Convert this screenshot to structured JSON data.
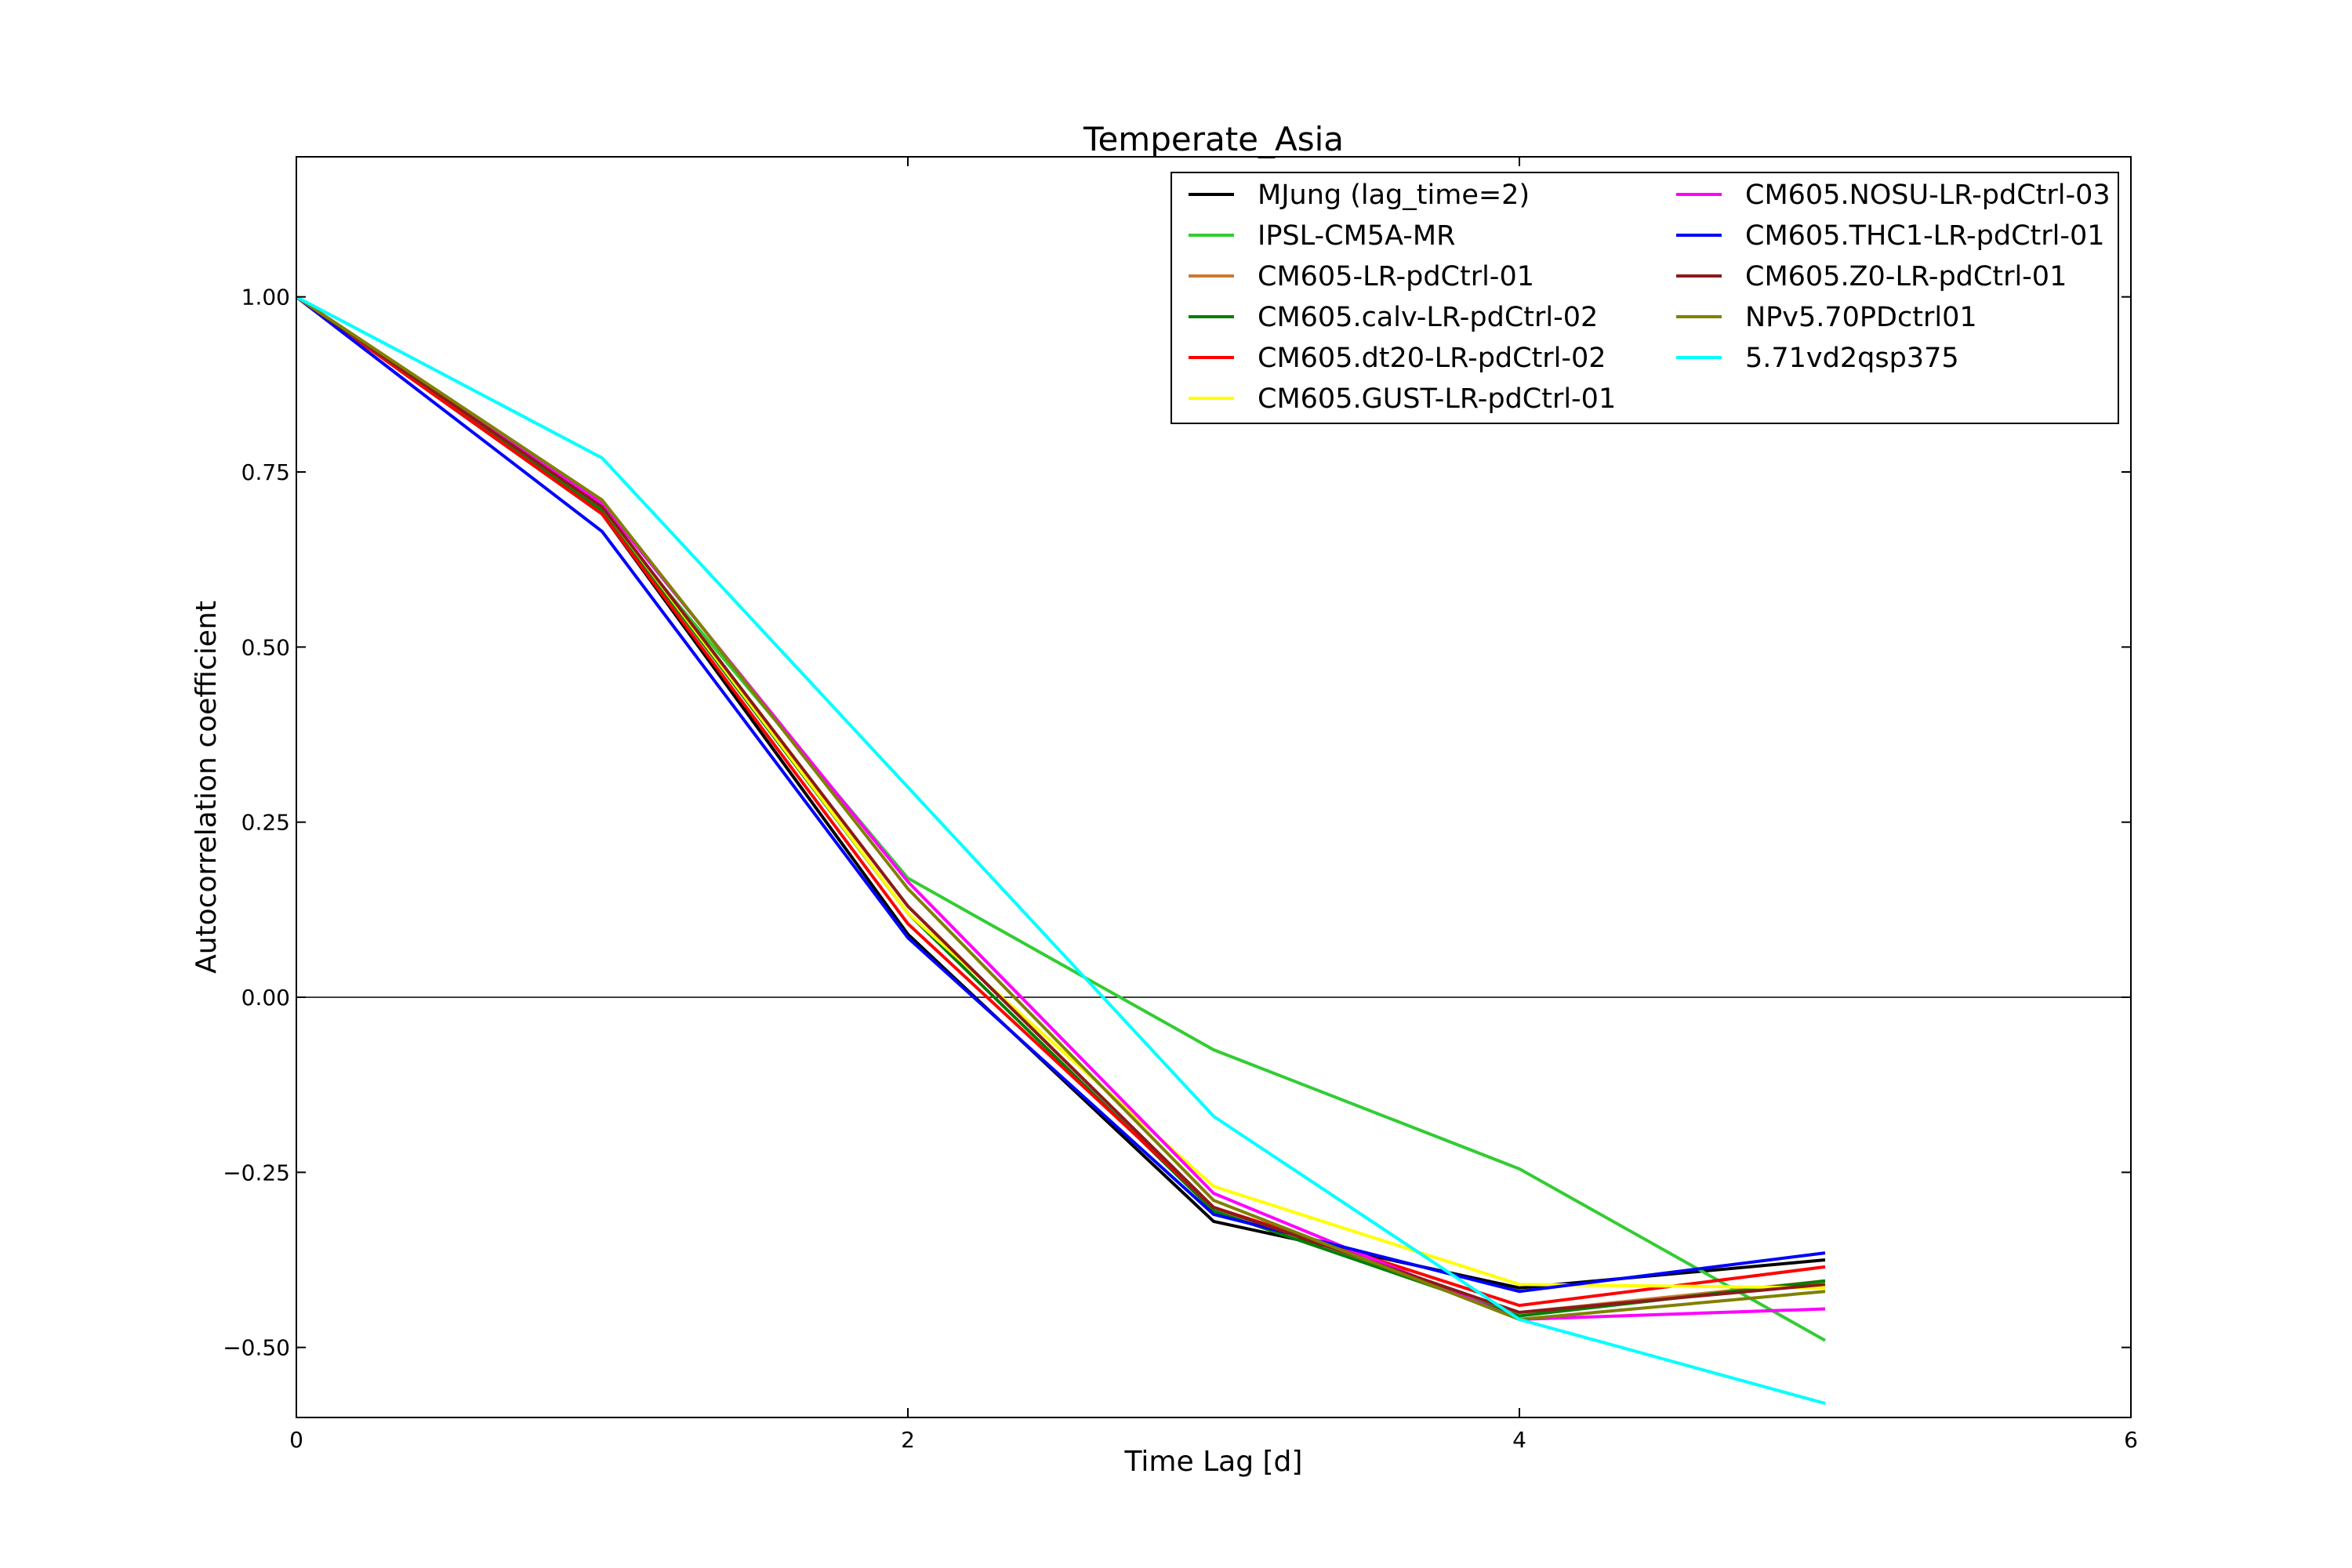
{
  "chart_data": {
    "type": "line",
    "title": "Temperate_Asia",
    "xlabel": "Time Lag [d]",
    "ylabel": "Autocorrelation coefficient",
    "xlim": [
      0,
      6
    ],
    "ylim": [
      -0.6,
      1.2
    ],
    "xticks": [
      0,
      2,
      4,
      6
    ],
    "xtick_labels": [
      "0",
      "2",
      "4",
      "6"
    ],
    "yticks": [
      -0.5,
      -0.25,
      0,
      0.25,
      0.5,
      0.75,
      1.0
    ],
    "ytick_labels": [
      "−0.50",
      "−0.25",
      "0.00",
      "0.25",
      "0.50",
      "0.75",
      "1.00"
    ],
    "zero_line": true,
    "grid": false,
    "legend_position": "top-right",
    "x": [
      0,
      1,
      2,
      3,
      4,
      5
    ],
    "series": [
      {
        "name": "MJung (lag_time=2)",
        "color": "#000000",
        "values": [
          1.0,
          0.69,
          0.09,
          -0.32,
          -0.415,
          -0.375
        ]
      },
      {
        "name": "IPSL-CM5A-MR",
        "color": "#33cc33",
        "values": [
          1.0,
          0.69,
          0.17,
          -0.075,
          -0.245,
          -0.49
        ]
      },
      {
        "name": "CM605-LR-pdCtrl-01",
        "color": "#cc7a33",
        "values": [
          1.0,
          0.7,
          0.13,
          -0.3,
          -0.45,
          -0.405
        ]
      },
      {
        "name": "CM605.calv-LR-pdCtrl-02",
        "color": "#007f00",
        "values": [
          1.0,
          0.695,
          0.12,
          -0.305,
          -0.455,
          -0.405
        ]
      },
      {
        "name": "CM605.dt20-LR-pdCtrl-02",
        "color": "#ff0000",
        "values": [
          1.0,
          0.69,
          0.105,
          -0.3,
          -0.44,
          -0.385
        ]
      },
      {
        "name": "CM605.GUST-LR-pdCtrl-01",
        "color": "#ffff00",
        "values": [
          1.0,
          0.7,
          0.12,
          -0.27,
          -0.41,
          -0.415
        ]
      },
      {
        "name": "CM605.NOSU-LR-pdCtrl-03",
        "color": "#ff00ff",
        "values": [
          1.0,
          0.705,
          0.165,
          -0.28,
          -0.46,
          -0.445
        ]
      },
      {
        "name": "CM605.THC1-LR-pdCtrl-01",
        "color": "#0000ff",
        "values": [
          1.0,
          0.665,
          0.085,
          -0.31,
          -0.42,
          -0.365
        ]
      },
      {
        "name": "CM605.Z0-LR-pdCtrl-01",
        "color": "#8b1a1a",
        "values": [
          1.0,
          0.7,
          0.13,
          -0.3,
          -0.45,
          -0.41
        ]
      },
      {
        "name": "NPv5.70PDctrl01",
        "color": "#808000",
        "values": [
          1.0,
          0.71,
          0.155,
          -0.29,
          -0.46,
          -0.42
        ]
      },
      {
        "name": "5.71vd2qsp375",
        "color": "#00ffff",
        "values": [
          1.0,
          0.77,
          0.3,
          -0.17,
          -0.46,
          -0.58
        ]
      }
    ]
  }
}
